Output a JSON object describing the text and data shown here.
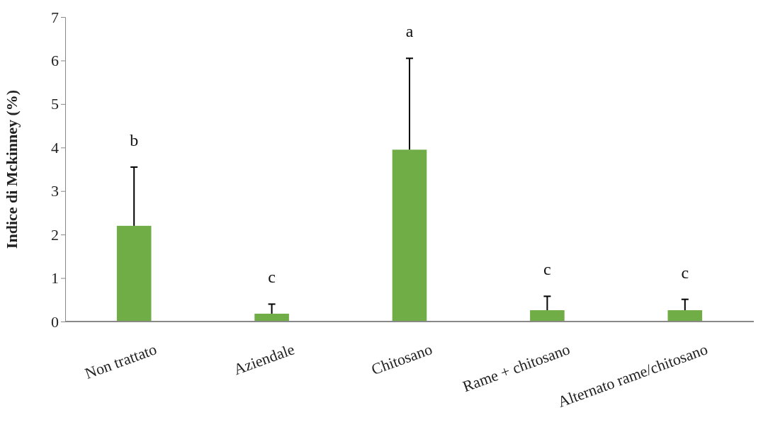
{
  "chart_data": {
    "type": "bar",
    "ylabel": "Indice di Mckinney (%)",
    "categories": [
      "Non trattato",
      "Aziendale",
      "Chitosano",
      "Rame + chitosano",
      "Alternato rame/chitosano"
    ],
    "values": [
      2.2,
      0.18,
      3.95,
      0.26,
      0.26
    ],
    "errors": [
      [
        2.2,
        3.55
      ],
      [
        0.18,
        0.4
      ],
      [
        3.95,
        6.05
      ],
      [
        0.26,
        0.58
      ],
      [
        0.26,
        0.51
      ]
    ],
    "color": "#70ad47",
    "ylim": [
      0,
      7
    ],
    "yticks": [
      0,
      1,
      2,
      3,
      4,
      5,
      6,
      7
    ],
    "grid": false,
    "annotations": [
      "b",
      "c",
      "a",
      "c",
      "c"
    ]
  }
}
